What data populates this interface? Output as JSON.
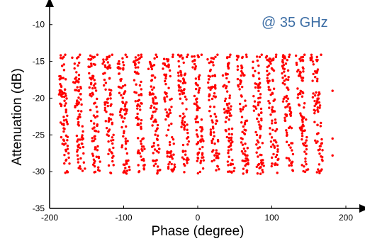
{
  "chart_data": {
    "type": "scatter",
    "title": "",
    "annotation": "@ 35 GHz",
    "annotation_color": "#3d6ea5",
    "xlabel": "Phase (degree)",
    "ylabel": "Attenuation (dB)",
    "xlim": [
      -200,
      200
    ],
    "ylim": [
      -35,
      -8
    ],
    "xticks": [
      -200,
      -100,
      0,
      100,
      200
    ],
    "yticks": [
      -35,
      -30,
      -25,
      -20,
      -15,
      -10
    ],
    "grid": false,
    "legend": "none",
    "marker_color": "#ff0000",
    "series": [
      {
        "name": "",
        "note_sample": "dense set of measured states arranged in slanted columns",
        "columns_x_center": [
          -178,
          -158,
          -137,
          -117,
          -97,
          -76,
          -56,
          -36,
          -16,
          4,
          24,
          44,
          64,
          84,
          104,
          124,
          144,
          164
        ],
        "column_slant_deg_over_range": 14,
        "y_range": [
          -30.8,
          -14.0
        ],
        "isolated_points": [
          {
            "x": 182,
            "y": -19.0
          },
          {
            "x": 182,
            "y": -25.5
          },
          {
            "x": 182,
            "y": -27.8
          }
        ]
      }
    ]
  }
}
